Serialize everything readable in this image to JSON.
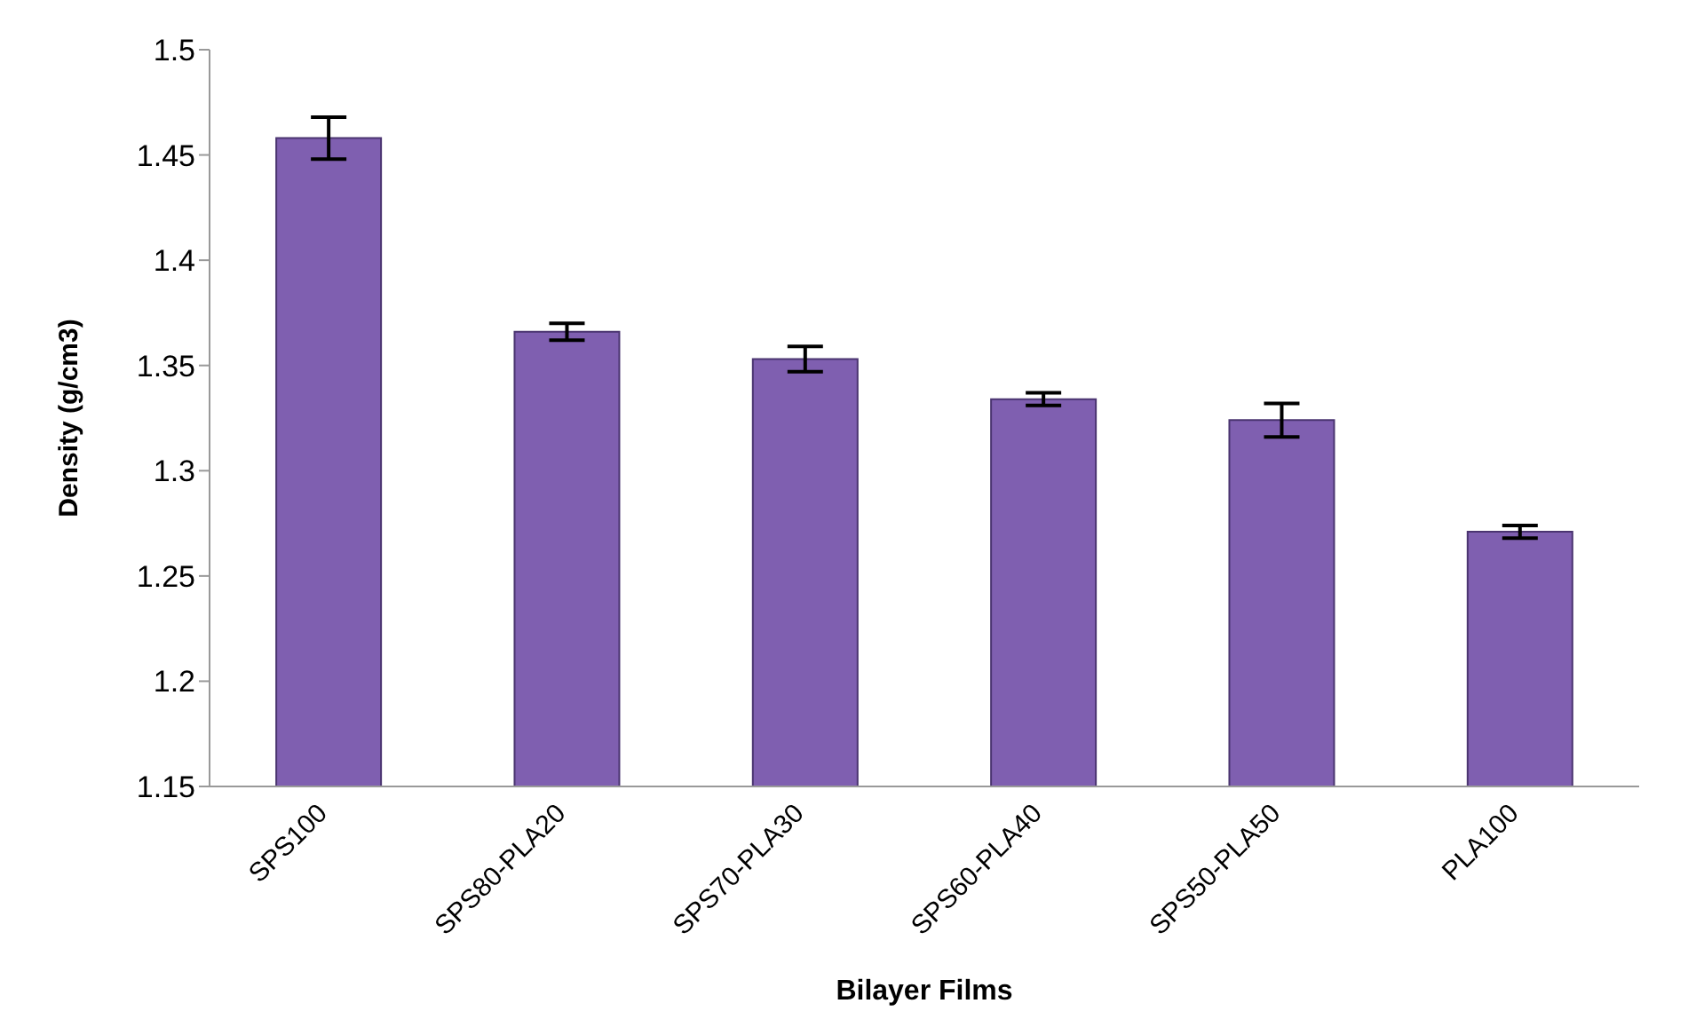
{
  "chart_data": {
    "type": "bar",
    "xlabel": "Bilayer Films",
    "ylabel": "Density (g/cm3)",
    "categories": [
      "SPS100",
      "SPS80-PLA20",
      "SPS70-PLA30",
      "SPS60-PLA40",
      "SPS50-PLA50",
      "PLA100"
    ],
    "values": [
      1.458,
      1.366,
      1.353,
      1.334,
      1.324,
      1.271
    ],
    "errors": [
      0.01,
      0.004,
      0.006,
      0.003,
      0.008,
      0.003
    ],
    "color": "#7f5fb0",
    "ylim": [
      1.15,
      1.5
    ],
    "yticks": [
      1.15,
      1.2,
      1.25,
      1.3,
      1.35,
      1.4,
      1.45,
      1.5
    ],
    "grid": false,
    "legend": false
  }
}
